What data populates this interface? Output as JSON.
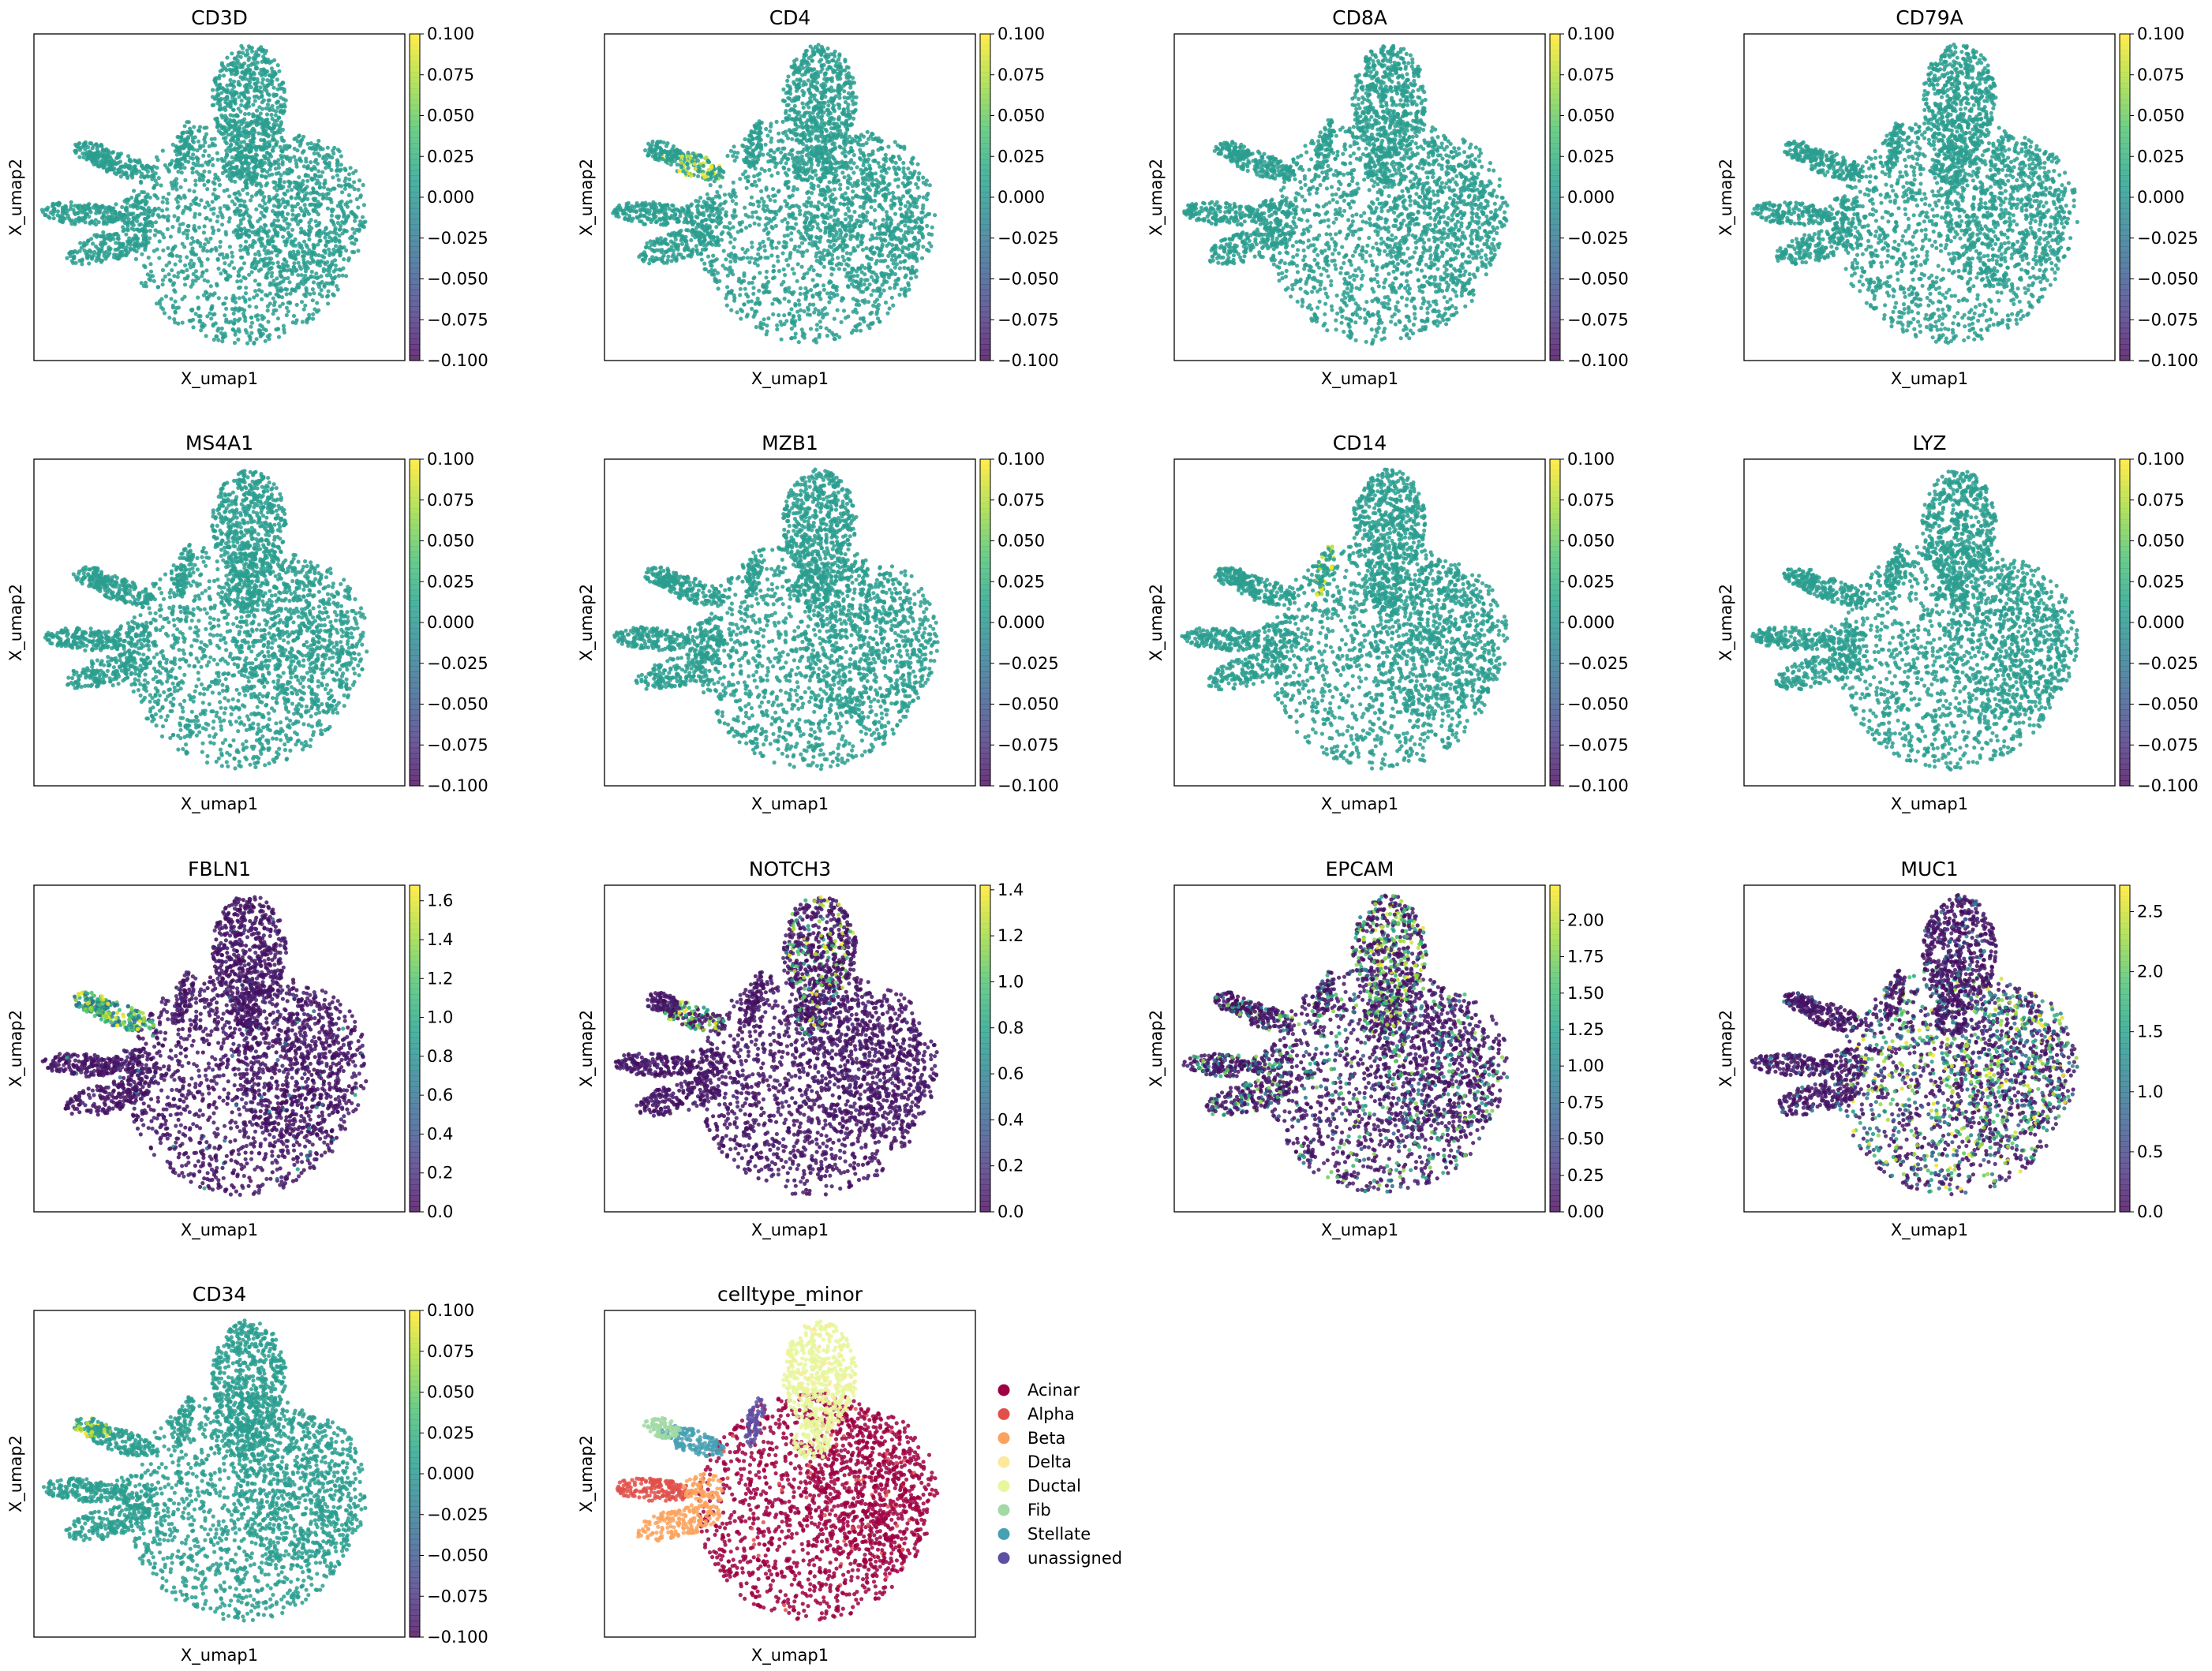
{
  "figure": {
    "xlabel": "X_umap1",
    "ylabel": "X_umap2"
  },
  "chart_data": [
    {
      "type": "scatter",
      "title": "CD3D",
      "xlabel": "X_umap1",
      "ylabel": "X_umap2",
      "style": "flat",
      "colorbar": {
        "colormap": "viridis",
        "range": [
          -0.1,
          0.1
        ],
        "tick_values": [
          -0.1,
          -0.075,
          -0.05,
          -0.025,
          0.0,
          0.025,
          0.05,
          0.075,
          0.1
        ],
        "tick_labels": [
          "−0.100",
          "−0.075",
          "−0.050",
          "−0.025",
          "0.000",
          "0.025",
          "0.050",
          "0.075",
          "0.100"
        ]
      }
    },
    {
      "type": "scatter",
      "title": "CD4",
      "xlabel": "X_umap1",
      "ylabel": "X_umap2",
      "style": "flat",
      "highlight": "stellate",
      "colorbar": {
        "colormap": "viridis",
        "range": [
          -0.1,
          0.1
        ],
        "tick_values": [
          -0.1,
          -0.075,
          -0.05,
          -0.025,
          0.0,
          0.025,
          0.05,
          0.075,
          0.1
        ],
        "tick_labels": [
          "−0.100",
          "−0.075",
          "−0.050",
          "−0.025",
          "0.000",
          "0.025",
          "0.050",
          "0.075",
          "0.100"
        ]
      }
    },
    {
      "type": "scatter",
      "title": "CD8A",
      "xlabel": "X_umap1",
      "ylabel": "X_umap2",
      "style": "flat",
      "colorbar": {
        "colormap": "viridis",
        "range": [
          -0.1,
          0.1
        ],
        "tick_values": [
          -0.1,
          -0.075,
          -0.05,
          -0.025,
          0.0,
          0.025,
          0.05,
          0.075,
          0.1
        ],
        "tick_labels": [
          "−0.100",
          "−0.075",
          "−0.050",
          "−0.025",
          "0.000",
          "0.025",
          "0.050",
          "0.075",
          "0.100"
        ]
      }
    },
    {
      "type": "scatter",
      "title": "CD79A",
      "xlabel": "X_umap1",
      "ylabel": "X_umap2",
      "style": "flat",
      "colorbar": {
        "colormap": "viridis",
        "range": [
          -0.1,
          0.1
        ],
        "tick_values": [
          -0.1,
          -0.075,
          -0.05,
          -0.025,
          0.0,
          0.025,
          0.05,
          0.075,
          0.1
        ],
        "tick_labels": [
          "−0.100",
          "−0.075",
          "−0.050",
          "−0.025",
          "0.000",
          "0.025",
          "0.050",
          "0.075",
          "0.100"
        ]
      }
    },
    {
      "type": "scatter",
      "title": "MS4A1",
      "xlabel": "X_umap1",
      "ylabel": "X_umap2",
      "style": "flat",
      "colorbar": {
        "colormap": "viridis",
        "range": [
          -0.1,
          0.1
        ],
        "tick_values": [
          -0.1,
          -0.075,
          -0.05,
          -0.025,
          0.0,
          0.025,
          0.05,
          0.075,
          0.1
        ],
        "tick_labels": [
          "−0.100",
          "−0.075",
          "−0.050",
          "−0.025",
          "0.000",
          "0.025",
          "0.050",
          "0.075",
          "0.100"
        ]
      }
    },
    {
      "type": "scatter",
      "title": "MZB1",
      "xlabel": "X_umap1",
      "ylabel": "X_umap2",
      "style": "flat",
      "colorbar": {
        "colormap": "viridis",
        "range": [
          -0.1,
          0.1
        ],
        "tick_values": [
          -0.1,
          -0.075,
          -0.05,
          -0.025,
          0.0,
          0.025,
          0.05,
          0.075,
          0.1
        ],
        "tick_labels": [
          "−0.100",
          "−0.075",
          "−0.050",
          "−0.025",
          "0.000",
          "0.025",
          "0.050",
          "0.075",
          "0.100"
        ]
      }
    },
    {
      "type": "scatter",
      "title": "CD14",
      "xlabel": "X_umap1",
      "ylabel": "X_umap2",
      "style": "flat",
      "highlight": "unassigned",
      "colorbar": {
        "colormap": "viridis",
        "range": [
          -0.1,
          0.1
        ],
        "tick_values": [
          -0.1,
          -0.075,
          -0.05,
          -0.025,
          0.0,
          0.025,
          0.05,
          0.075,
          0.1
        ],
        "tick_labels": [
          "−0.100",
          "−0.075",
          "−0.050",
          "−0.025",
          "0.000",
          "0.025",
          "0.050",
          "0.075",
          "0.100"
        ]
      }
    },
    {
      "type": "scatter",
      "title": "LYZ",
      "xlabel": "X_umap1",
      "ylabel": "X_umap2",
      "style": "flat",
      "colorbar": {
        "colormap": "viridis",
        "range": [
          -0.1,
          0.1
        ],
        "tick_values": [
          -0.1,
          -0.075,
          -0.05,
          -0.025,
          0.0,
          0.025,
          0.05,
          0.075,
          0.1
        ],
        "tick_labels": [
          "−0.100",
          "−0.075",
          "−0.050",
          "−0.025",
          "0.000",
          "0.025",
          "0.050",
          "0.075",
          "0.100"
        ]
      }
    },
    {
      "type": "scatter",
      "title": "FBLN1",
      "xlabel": "X_umap1",
      "ylabel": "X_umap2",
      "style": "fbln1",
      "colorbar": {
        "colormap": "viridis",
        "range": [
          0.0,
          1.68
        ],
        "tick_values": [
          0,
          0.2,
          0.4,
          0.6,
          0.8,
          1.0,
          1.2,
          1.4,
          1.6
        ],
        "tick_labels": [
          "0.0",
          "0.2",
          "0.4",
          "0.6",
          "0.8",
          "1.0",
          "1.2",
          "1.4",
          "1.6"
        ]
      }
    },
    {
      "type": "scatter",
      "title": "NOTCH3",
      "xlabel": "X_umap1",
      "ylabel": "X_umap2",
      "style": "notch3",
      "colorbar": {
        "colormap": "viridis",
        "range": [
          0.0,
          1.42
        ],
        "tick_values": [
          0,
          0.2,
          0.4,
          0.6,
          0.8,
          1.0,
          1.2,
          1.4
        ],
        "tick_labels": [
          "0.0",
          "0.2",
          "0.4",
          "0.6",
          "0.8",
          "1.0",
          "1.2",
          "1.4"
        ]
      }
    },
    {
      "type": "scatter",
      "title": "EPCAM",
      "xlabel": "X_umap1",
      "ylabel": "X_umap2",
      "style": "epcam",
      "colorbar": {
        "colormap": "viridis",
        "range": [
          0.0,
          2.24
        ],
        "tick_values": [
          0,
          0.25,
          0.5,
          0.75,
          1.0,
          1.25,
          1.5,
          1.75,
          2.0
        ],
        "tick_labels": [
          "0.00",
          "0.25",
          "0.50",
          "0.75",
          "1.00",
          "1.25",
          "1.50",
          "1.75",
          "2.00"
        ]
      }
    },
    {
      "type": "scatter",
      "title": "MUC1",
      "xlabel": "X_umap1",
      "ylabel": "X_umap2",
      "style": "muc1",
      "colorbar": {
        "colormap": "viridis",
        "range": [
          0.0,
          2.72
        ],
        "tick_values": [
          0,
          0.5,
          1.0,
          1.5,
          2.0,
          2.5
        ],
        "tick_labels": [
          "0.0",
          "0.5",
          "1.0",
          "1.5",
          "2.0",
          "2.5"
        ]
      }
    },
    {
      "type": "scatter",
      "title": "CD34",
      "xlabel": "X_umap1",
      "ylabel": "X_umap2",
      "style": "flat",
      "highlight": "fib",
      "colorbar": {
        "colormap": "viridis",
        "range": [
          -0.1,
          0.1
        ],
        "tick_values": [
          -0.1,
          -0.075,
          -0.05,
          -0.025,
          0.0,
          0.025,
          0.05,
          0.075,
          0.1
        ],
        "tick_labels": [
          "−0.100",
          "−0.075",
          "−0.050",
          "−0.025",
          "0.000",
          "0.025",
          "0.050",
          "0.075",
          "0.100"
        ]
      }
    },
    {
      "type": "scatter",
      "title": "celltype_minor",
      "xlabel": "X_umap1",
      "ylabel": "X_umap2",
      "style": "categorical",
      "legend": {
        "placement": "right",
        "entries": [
          {
            "label": "Acinar",
            "color": "#9e0142"
          },
          {
            "label": "Alpha",
            "color": "#e1504a"
          },
          {
            "label": "Beta",
            "color": "#fba35e"
          },
          {
            "label": "Delta",
            "color": "#fee89a"
          },
          {
            "label": "Ductal",
            "color": "#e8f69c"
          },
          {
            "label": "Fib",
            "color": "#a2d9a4"
          },
          {
            "label": "Stellate",
            "color": "#47a0b3"
          },
          {
            "label": "unassigned",
            "color": "#5e4fa2"
          }
        ]
      }
    }
  ]
}
